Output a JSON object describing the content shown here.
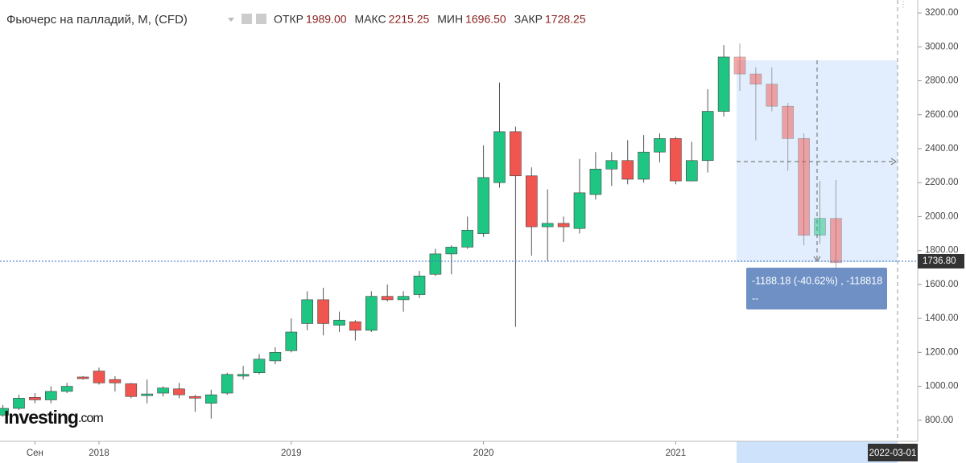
{
  "chart_data": {
    "type": "candlestick",
    "title": "Фьючерс на палладий, M, (CFD)",
    "ohlc_legend": [
      {
        "name": "ОТКР",
        "value": 1989,
        "label": "1989.00"
      },
      {
        "name": "МАКС",
        "value": 2215.25,
        "label": "2215.25"
      },
      {
        "name": "МИН",
        "value": 1696.5,
        "label": "1696.50"
      },
      {
        "name": "ЗАКР",
        "value": 1728.25,
        "label": "1728.25"
      }
    ],
    "categories": [
      null,
      null,
      "Сен",
      null,
      null,
      null,
      "2018",
      null,
      null,
      null,
      null,
      null,
      null,
      null,
      null,
      null,
      null,
      null,
      "2019",
      null,
      null,
      null,
      null,
      null,
      null,
      null,
      null,
      null,
      null,
      null,
      "2020",
      null,
      null,
      null,
      null,
      null,
      null,
      null,
      null,
      null,
      null,
      null,
      "2021",
      null,
      null,
      null,
      null,
      null,
      null,
      null,
      null,
      null,
      null
    ],
    "open": [
      830,
      870,
      935,
      920,
      970,
      1055,
      1090,
      1040,
      1015,
      945,
      960,
      985,
      940,
      900,
      960,
      1060,
      1080,
      1150,
      1210,
      1370,
      1510,
      1360,
      1380,
      1330,
      1530,
      1510,
      1540,
      1660,
      1780,
      1820,
      1900,
      2200,
      2500,
      2240,
      1940,
      1960,
      1930,
      2130,
      2280,
      2330,
      2220,
      2380,
      2460,
      2210,
      2330,
      2620,
      2940,
      2840,
      2780,
      2650,
      2460,
      1890,
      1989
    ],
    "high": [
      890,
      950,
      960,
      1000,
      1020,
      1060,
      1110,
      1060,
      1020,
      1040,
      1000,
      1020,
      950,
      980,
      1080,
      1120,
      1190,
      1230,
      1400,
      1560,
      1580,
      1440,
      1390,
      1560,
      1600,
      1560,
      1680,
      1810,
      1830,
      2000,
      2420,
      2790,
      2530,
      2290,
      2160,
      2000,
      2340,
      2380,
      2380,
      2450,
      2480,
      2490,
      2470,
      2440,
      2750,
      3010,
      3020,
      2880,
      2880,
      2670,
      2490,
      2210,
      2215.25
    ],
    "low": [
      820,
      860,
      900,
      900,
      960,
      1040,
      1010,
      970,
      930,
      900,
      940,
      930,
      850,
      810,
      950,
      1040,
      1070,
      1130,
      1200,
      1330,
      1300,
      1320,
      1270,
      1320,
      1500,
      1440,
      1520,
      1650,
      1660,
      1810,
      1880,
      2170,
      1350,
      1770,
      1740,
      1850,
      1900,
      2100,
      2180,
      2190,
      2200,
      2320,
      2190,
      2210,
      2260,
      2590,
      2740,
      2450,
      2620,
      2270,
      1830,
      1840,
      1696.5
    ],
    "close": [
      870,
      930,
      920,
      970,
      1000,
      1045,
      1020,
      1020,
      940,
      955,
      990,
      950,
      930,
      950,
      1070,
      1070,
      1160,
      1200,
      1320,
      1510,
      1370,
      1390,
      1330,
      1530,
      1510,
      1530,
      1650,
      1780,
      1820,
      1920,
      2230,
      2500,
      2240,
      1940,
      1960,
      1940,
      2140,
      2280,
      2330,
      2220,
      2380,
      2460,
      2210,
      2330,
      2620,
      2940,
      2840,
      2780,
      2650,
      2460,
      1890,
      1990,
      1728.25
    ],
    "up_color": "#1ec583",
    "down_color": "#f0564f",
    "ylim": [
      676,
      3276
    ],
    "yticks": [
      {
        "value": 800,
        "label": "800.00"
      },
      {
        "value": 1000,
        "label": "1000.00"
      },
      {
        "value": 1200,
        "label": "1200.00"
      },
      {
        "value": 1400,
        "label": "1400.00"
      },
      {
        "value": 1600,
        "label": "1600.00"
      },
      {
        "value": 1800,
        "label": "1800.00"
      },
      {
        "value": 2000,
        "label": "2000.00"
      },
      {
        "value": 2200,
        "label": "2200.00"
      },
      {
        "value": 2400,
        "label": "2400.00"
      },
      {
        "value": 2600,
        "label": "2600.00"
      },
      {
        "value": 2800,
        "label": "2800.00"
      },
      {
        "value": 3000,
        "label": "3000.00"
      },
      {
        "value": 3200,
        "label": "3200.00"
      }
    ],
    "price_line": {
      "value": 1736.8,
      "label": "1736.80"
    },
    "crosshair_date": "2022-03-01",
    "partial_x_label": "20",
    "measure": {
      "text": "-1188.18 (-40.62%) , -118818",
      "text2": "--"
    },
    "watermark": {
      "brand": "Investing",
      "suffix": ".com"
    }
  }
}
